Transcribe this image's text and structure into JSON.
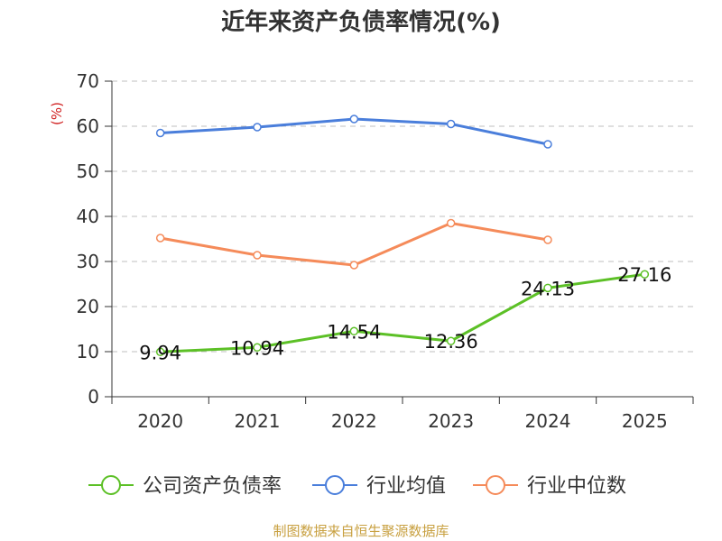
{
  "title": "近年来资产负债率情况(%)",
  "source": "制图数据来自恒生聚源数据库",
  "colors": {
    "company": "#5cc026",
    "industry_avg": "#4a7edb",
    "industry_median": "#f58b5a",
    "grid": "#bfbfbf",
    "axis": "#333333"
  },
  "chart_data": {
    "type": "line",
    "title": "近年来资产负债率情况(%)",
    "ylabel": "(%)",
    "xlabel": "",
    "categories": [
      "2020",
      "2021",
      "2022",
      "2023",
      "2024",
      "2025"
    ],
    "ylim": [
      0,
      70
    ],
    "yticks": [
      0,
      10,
      20,
      30,
      40,
      50,
      60,
      70
    ],
    "grid": true,
    "legend": "bottom",
    "series": [
      {
        "name": "公司资产负债率",
        "color": "#5cc026",
        "values": [
          9.94,
          10.94,
          14.54,
          12.36,
          24.13,
          27.16
        ],
        "labels": [
          "9.94",
          "10.94",
          "14.54",
          "12.36",
          "24.13",
          "27.16"
        ]
      },
      {
        "name": "行业均值",
        "color": "#4a7edb",
        "values": [
          58.5,
          59.8,
          61.6,
          60.5,
          56.0,
          null
        ]
      },
      {
        "name": "行业中位数",
        "color": "#f58b5a",
        "values": [
          35.2,
          31.4,
          29.2,
          38.5,
          34.8,
          null
        ]
      }
    ]
  }
}
